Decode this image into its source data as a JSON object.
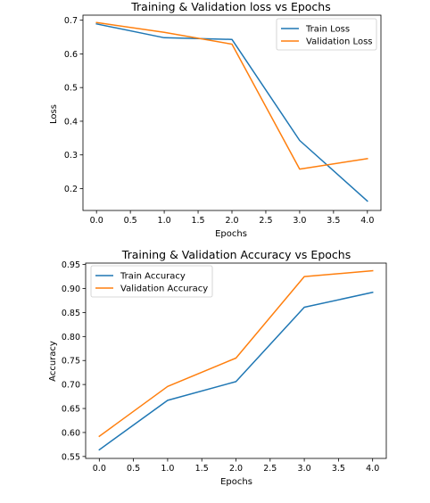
{
  "chart_data": [
    {
      "type": "line",
      "title": "Training & Validation loss vs Epochs",
      "xlabel": "Epochs",
      "ylabel": "Loss",
      "xlim": [
        -0.2,
        4.2
      ],
      "ylim": [
        0.135,
        0.715
      ],
      "xticks": [
        0.0,
        0.5,
        1.0,
        1.5,
        2.0,
        2.5,
        3.0,
        3.5,
        4.0
      ],
      "xtick_labels": [
        "0.0",
        "0.5",
        "1.0",
        "1.5",
        "2.0",
        "2.5",
        "3.0",
        "3.5",
        "4.0"
      ],
      "yticks": [
        0.2,
        0.3,
        0.4,
        0.5,
        0.6,
        0.7
      ],
      "ytick_labels": [
        "0.2",
        "0.3",
        "0.4",
        "0.5",
        "0.6",
        "0.7"
      ],
      "x": [
        0,
        1,
        2,
        3,
        4
      ],
      "series": [
        {
          "name": "Train Loss",
          "color": "#1f77b4",
          "values": [
            0.689,
            0.648,
            0.643,
            0.343,
            0.163
          ]
        },
        {
          "name": "Validation Loss",
          "color": "#ff7f0e",
          "values": [
            0.693,
            0.664,
            0.629,
            0.258,
            0.289
          ]
        }
      ],
      "legend": "top-right",
      "grid": false
    },
    {
      "type": "line",
      "title": "Training & Validation Accuracy vs Epochs",
      "xlabel": "Epochs",
      "ylabel": "Accuracy",
      "xlim": [
        -0.2,
        4.2
      ],
      "ylim": [
        0.546,
        0.953
      ],
      "xticks": [
        0.0,
        0.5,
        1.0,
        1.5,
        2.0,
        2.5,
        3.0,
        3.5,
        4.0
      ],
      "xtick_labels": [
        "0.0",
        "0.5",
        "1.0",
        "1.5",
        "2.0",
        "2.5",
        "3.0",
        "3.5",
        "4.0"
      ],
      "yticks": [
        0.55,
        0.6,
        0.65,
        0.7,
        0.75,
        0.8,
        0.85,
        0.9,
        0.95
      ],
      "ytick_labels": [
        "0.55",
        "0.60",
        "0.65",
        "0.70",
        "0.75",
        "0.80",
        "0.85",
        "0.90",
        "0.95"
      ],
      "x": [
        0,
        1,
        2,
        3,
        4
      ],
      "series": [
        {
          "name": "Train Accuracy",
          "color": "#1f77b4",
          "values": [
            0.564,
            0.667,
            0.706,
            0.861,
            0.892
          ]
        },
        {
          "name": "Validation Accuracy",
          "color": "#ff7f0e",
          "values": [
            0.592,
            0.696,
            0.755,
            0.925,
            0.937
          ]
        }
      ],
      "legend": "top-left",
      "grid": false
    }
  ]
}
